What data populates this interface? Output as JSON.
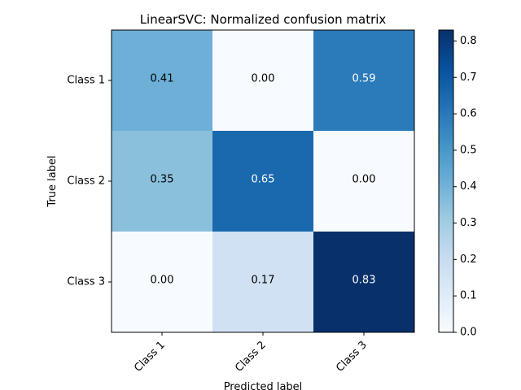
{
  "chart_data": {
    "type": "heatmap",
    "title": "LinearSVC: Normalized confusion matrix",
    "xlabel": "Predicted label",
    "ylabel": "True label",
    "x_categories": [
      "Class 1",
      "Class 2",
      "Class 3"
    ],
    "y_categories": [
      "Class 1",
      "Class 2",
      "Class 3"
    ],
    "values": [
      [
        0.41,
        0.0,
        0.59
      ],
      [
        0.35,
        0.65,
        0.0
      ],
      [
        0.0,
        0.17,
        0.83
      ]
    ],
    "value_labels": [
      [
        "0.41",
        "0.00",
        "0.59"
      ],
      [
        "0.35",
        "0.65",
        "0.00"
      ],
      [
        "0.00",
        "0.17",
        "0.83"
      ]
    ],
    "colormap": "Blues",
    "colorbar_range": [
      0,
      0.83
    ],
    "colorbar_ticks": [
      "0.0",
      "0.1",
      "0.2",
      "0.3",
      "0.4",
      "0.5",
      "0.6",
      "0.7",
      "0.8"
    ],
    "colorbar_tick_values": [
      0,
      0.1,
      0.2,
      0.3,
      0.4,
      0.5,
      0.6,
      0.7,
      0.8
    ],
    "text_colors": {
      "dark_bg": "#ffffff",
      "light_bg": "#000000"
    },
    "grid": false
  }
}
